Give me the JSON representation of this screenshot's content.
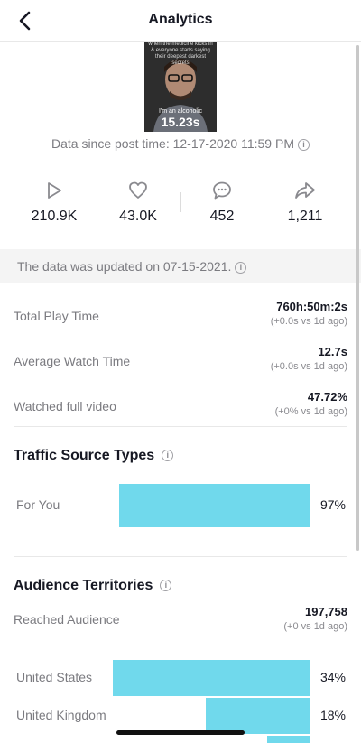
{
  "header": {
    "title": "Analytics"
  },
  "video": {
    "caption": "when the medicine kicks in & everyone starts saying their deepest darkest secrets",
    "quote": "I'm an alcoholic",
    "duration": "15.23s"
  },
  "since": {
    "text": "Data since post time: 12-17-2020 11:59 PM"
  },
  "stats": [
    {
      "icon": "play-icon",
      "value": "210.9K"
    },
    {
      "icon": "heart-icon",
      "value": "43.0K"
    },
    {
      "icon": "comment-icon",
      "value": "452"
    },
    {
      "icon": "share-icon",
      "value": "1,211"
    }
  ],
  "updated": {
    "text": "The data was updated on 07-15-2021."
  },
  "metrics": [
    {
      "label": "Total Play Time",
      "value": "760h:50m:2s",
      "delta": "(+0.0s vs 1d ago)"
    },
    {
      "label": "Average Watch Time",
      "value": "12.7s",
      "delta": "(+0.0s vs 1d ago)"
    },
    {
      "label": "Watched full video",
      "value": "47.72%",
      "delta": "(+0% vs 1d ago)"
    }
  ],
  "traffic": {
    "title": "Traffic Source Types",
    "rows": [
      {
        "label": "For You",
        "pct": "97%",
        "value": 0.97
      }
    ]
  },
  "audience": {
    "title": "Audience Territories",
    "reached_label": "Reached Audience",
    "reached_value": "197,758",
    "reached_delta": "(+0 vs 1d ago)",
    "rows": [
      {
        "label": "United States",
        "pct": "34%",
        "value": 0.34
      },
      {
        "label": "United Kingdom",
        "pct": "18%",
        "value": 0.18
      }
    ]
  },
  "colors": {
    "bar": "#70d9ec",
    "muted": "#7b7b80"
  }
}
